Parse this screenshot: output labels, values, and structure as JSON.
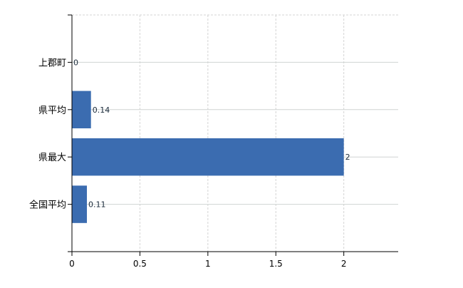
{
  "chart_data": {
    "type": "bar",
    "orientation": "horizontal",
    "categories": [
      "上郡町",
      "県平均",
      "県最大",
      "全国平均"
    ],
    "values": [
      0,
      0.14,
      2,
      0.11
    ],
    "data_labels": [
      "0",
      "0.14",
      "2",
      "0.11"
    ],
    "xlim": [
      0,
      2.4
    ],
    "xticks": [
      0,
      0.5,
      1,
      1.5,
      2
    ],
    "xtick_labels": [
      "0",
      "0.5",
      "1",
      "1.5",
      "2"
    ],
    "title": "",
    "xlabel": "",
    "ylabel": "",
    "grid": true,
    "bar_color": "#3b6cb0"
  }
}
